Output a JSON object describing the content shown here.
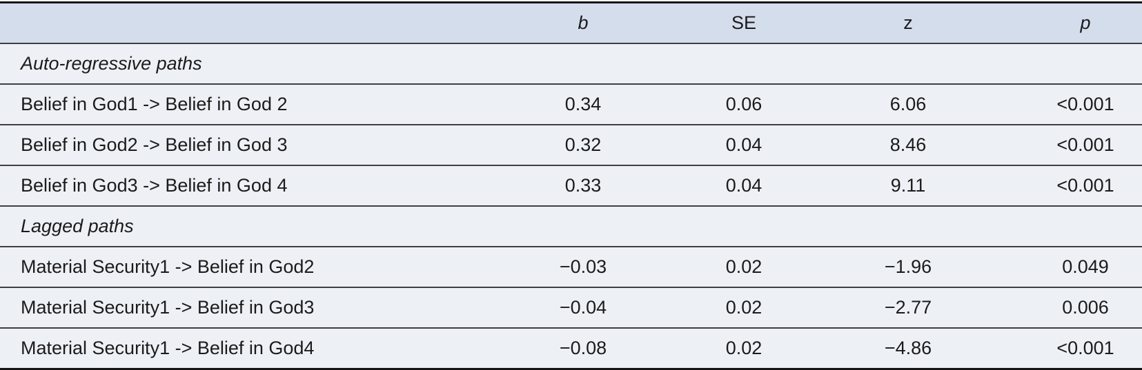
{
  "table": {
    "columns": {
      "label": "",
      "b": "b",
      "se": "SE",
      "z": "z",
      "p": "p"
    },
    "sections": [
      {
        "title": "Auto-regressive paths",
        "rows": [
          {
            "label": "Belief in God1 -> Belief in God 2",
            "b": "0.34",
            "se": "0.06",
            "z": "6.06",
            "p": "<0.001"
          },
          {
            "label": "Belief in God2 -> Belief in God 3",
            "b": "0.32",
            "se": "0.04",
            "z": "8.46",
            "p": "<0.001"
          },
          {
            "label": "Belief in God3 -> Belief in God 4",
            "b": "0.33",
            "se": "0.04",
            "z": "9.11",
            "p": "<0.001"
          }
        ]
      },
      {
        "title": "Lagged paths",
        "rows": [
          {
            "label": "Material Security1 -> Belief in God2",
            "b": "−0.03",
            "se": "0.02",
            "z": "−1.96",
            "p": "0.049"
          },
          {
            "label": "Material Security1 -> Belief in God3",
            "b": "−0.04",
            "se": "0.02",
            "z": "−2.77",
            "p": "0.006"
          },
          {
            "label": "Material Security1 -> Belief in God4",
            "b": "−0.08",
            "se": "0.02",
            "z": "−4.86",
            "p": "<0.001"
          }
        ]
      }
    ],
    "colors": {
      "header_bg": "#d4ddec",
      "row_bg": "#edf0f5",
      "text": "#1b1b1b",
      "border_heavy": "#141414",
      "border_light": "#3f3f3f"
    }
  },
  "chart_data": {
    "type": "table",
    "columns": [
      "",
      "b",
      "SE",
      "z",
      "p"
    ],
    "rows": [
      [
        "Auto-regressive paths",
        "",
        "",
        "",
        ""
      ],
      [
        "Belief in God1 -> Belief in God 2",
        "0.34",
        "0.06",
        "6.06",
        "<0.001"
      ],
      [
        "Belief in God2 -> Belief in God 3",
        "0.32",
        "0.04",
        "8.46",
        "<0.001"
      ],
      [
        "Belief in God3 -> Belief in God 4",
        "0.33",
        "0.04",
        "9.11",
        "<0.001"
      ],
      [
        "Lagged paths",
        "",
        "",
        "",
        ""
      ],
      [
        "Material Security1 -> Belief in God2",
        "−0.03",
        "0.02",
        "−1.96",
        "0.049"
      ],
      [
        "Material Security1 -> Belief in God3",
        "−0.04",
        "0.02",
        "−2.77",
        "0.006"
      ],
      [
        "Material Security1 -> Belief in God4",
        "−0.08",
        "0.02",
        "−4.86",
        "<0.001"
      ]
    ]
  }
}
